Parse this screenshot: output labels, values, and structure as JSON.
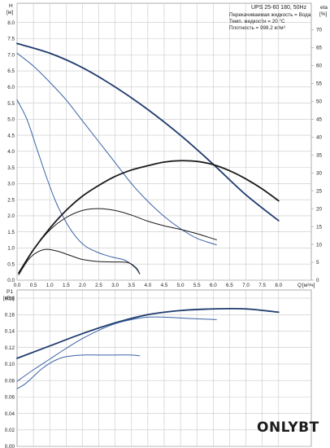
{
  "chart_data": [
    {
      "type": "line",
      "title": "UPS 25-60 180, 50Hz",
      "notes": [
        "Перекачиваемая жидкость = Вода",
        "Темп. жидкости = 20 °C",
        "Плотность = 998.2 кг/м³"
      ],
      "ylabel_left": [
        "H",
        "[м]"
      ],
      "ylabel_right": [
        "eta",
        "[%]"
      ],
      "xlabel": "Q",
      "xunit": "[м³/ч]",
      "xlim": [
        0,
        9
      ],
      "xticks": [
        "0.0",
        "0.5",
        "1.0",
        "1.5",
        "2.0",
        "2.5",
        "3.0",
        "3.5",
        "4.0",
        "4.5",
        "5.0",
        "5.5",
        "6.0",
        "6.5",
        "7.0",
        "7.5",
        "8.0"
      ],
      "ylim_left": [
        0,
        8.6
      ],
      "yticks_left": [
        "0.0",
        "0.5",
        "1.0",
        "1.5",
        "2.0",
        "2.5",
        "3.0",
        "3.5",
        "4.0",
        "4.5",
        "5.0",
        "5.5",
        "6.0",
        "6.5",
        "7.0",
        "7.5",
        "8.0"
      ],
      "ylim_right": [
        0,
        77.4
      ],
      "yticks_right": [
        "0",
        "5",
        "10",
        "15",
        "20",
        "25",
        "30",
        "35",
        "40",
        "45",
        "50",
        "55",
        "60",
        "65",
        "70"
      ],
      "grid": true,
      "series": [
        {
          "color": "#1f3b6e",
          "width": 1.8,
          "axis": "left",
          "x": [
            0,
            1,
            2,
            3,
            4,
            5,
            6,
            7,
            8
          ],
          "y": [
            7.35,
            7.05,
            6.6,
            6.0,
            5.3,
            4.5,
            3.6,
            2.65,
            1.85
          ]
        },
        {
          "color": "#3a62a7",
          "width": 1,
          "axis": "left",
          "x": [
            0,
            0.5,
            1,
            1.5,
            2,
            2.5,
            3,
            3.5,
            4,
            4.5,
            5,
            5.5,
            6.1
          ],
          "y": [
            7.05,
            6.65,
            6.15,
            5.6,
            4.95,
            4.3,
            3.65,
            3.0,
            2.45,
            1.98,
            1.6,
            1.3,
            1.1
          ]
        },
        {
          "color": "#3a62a7",
          "width": 1,
          "axis": "left",
          "x": [
            0,
            0.3,
            0.6,
            0.9,
            1.2,
            1.5,
            1.8,
            2.1,
            2.5,
            2.9,
            3.3,
            3.6,
            3.75
          ],
          "y": [
            5.6,
            5.0,
            4.1,
            3.2,
            2.4,
            1.8,
            1.35,
            1.05,
            0.85,
            0.72,
            0.62,
            0.4,
            0.2
          ]
        },
        {
          "color": "#1a1a1a",
          "width": 1.8,
          "axis": "right",
          "x": [
            0.05,
            0.5,
            1,
            1.5,
            2,
            2.5,
            3,
            3.5,
            4,
            4.5,
            5,
            5.5,
            6,
            6.5,
            7,
            7.5,
            8
          ],
          "y": [
            2,
            8.5,
            14.5,
            19.5,
            23.5,
            26.5,
            29,
            30.8,
            32,
            33,
            33.4,
            33.2,
            32.3,
            30.6,
            28.3,
            25.5,
            22.2
          ]
        },
        {
          "color": "#1a1a1a",
          "width": 1,
          "axis": "right",
          "x": [
            0.05,
            0.5,
            1,
            1.5,
            2,
            2.5,
            3,
            3.5,
            4,
            4.5,
            5,
            5.5,
            6.1
          ],
          "y": [
            2,
            8.5,
            14,
            17.5,
            19.5,
            20,
            19.5,
            18.2,
            16.5,
            15.2,
            14.2,
            13,
            11.3
          ]
        },
        {
          "color": "#1a1a1a",
          "width": 1,
          "axis": "right",
          "x": [
            0.05,
            0.4,
            0.8,
            1.2,
            1.6,
            2,
            2.5,
            3,
            3.4,
            3.65,
            3.75
          ],
          "y": [
            1.5,
            6.3,
            8.5,
            8.2,
            7,
            5.8,
            5.2,
            5.1,
            4.9,
            3.4,
            1.8
          ]
        }
      ]
    },
    {
      "type": "line",
      "ylabel": [
        "P1",
        "[кВт]"
      ],
      "ylim": [
        0,
        0.19
      ],
      "yticks": [
        "0.00",
        "0.02",
        "0.04",
        "0.06",
        "0.08",
        "0.10",
        "0.12",
        "0.14",
        "0.16",
        "0.18"
      ],
      "grid": true,
      "series": [
        {
          "color": "#1f3b6e",
          "width": 1.8,
          "x": [
            0,
            1,
            2,
            3,
            4,
            5,
            6,
            7,
            8
          ],
          "y": [
            0.107,
            0.122,
            0.137,
            0.15,
            0.16,
            0.165,
            0.167,
            0.167,
            0.163
          ]
        },
        {
          "color": "#3a62a7",
          "width": 1,
          "x": [
            0,
            0.5,
            1,
            1.5,
            2,
            2.5,
            3,
            3.5,
            4,
            4.5,
            5,
            5.5,
            6.1
          ],
          "y": [
            0.079,
            0.093,
            0.106,
            0.119,
            0.131,
            0.141,
            0.149,
            0.154,
            0.157,
            0.157,
            0.156,
            0.155,
            0.154
          ]
        },
        {
          "color": "#3a62a7",
          "width": 1,
          "x": [
            0,
            0.25,
            0.5,
            0.75,
            1,
            1.25,
            1.5,
            2,
            2.5,
            3,
            3.5,
            3.75
          ],
          "y": [
            0.07,
            0.076,
            0.085,
            0.094,
            0.101,
            0.106,
            0.109,
            0.111,
            0.111,
            0.111,
            0.111,
            0.11
          ]
        }
      ]
    }
  ],
  "watermark": "ONLYBT"
}
